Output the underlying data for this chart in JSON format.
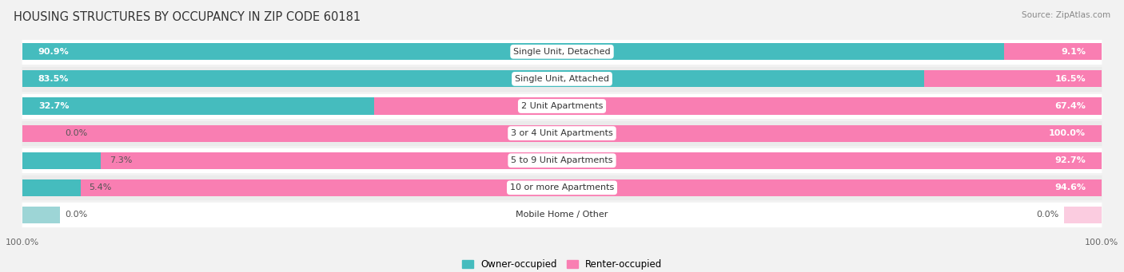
{
  "title": "HOUSING STRUCTURES BY OCCUPANCY IN ZIP CODE 60181",
  "source": "Source: ZipAtlas.com",
  "categories": [
    "Single Unit, Detached",
    "Single Unit, Attached",
    "2 Unit Apartments",
    "3 or 4 Unit Apartments",
    "5 to 9 Unit Apartments",
    "10 or more Apartments",
    "Mobile Home / Other"
  ],
  "owner_pct": [
    90.9,
    83.5,
    32.7,
    0.0,
    7.3,
    5.4,
    0.0
  ],
  "renter_pct": [
    9.1,
    16.5,
    67.4,
    100.0,
    92.7,
    94.6,
    0.0
  ],
  "owner_color": "#45BCBE",
  "renter_color": "#F97EB2",
  "owner_stub_color": "#9DD5D6",
  "renter_stub_color": "#FBCCE0",
  "bg_color": "#F2F2F2",
  "row_colors": [
    "#FFFFFF",
    "#EBEBEB"
  ],
  "title_fontsize": 10.5,
  "label_fontsize": 8,
  "bar_label_fontsize": 8,
  "legend_fontsize": 8.5,
  "axis_label_fontsize": 8
}
